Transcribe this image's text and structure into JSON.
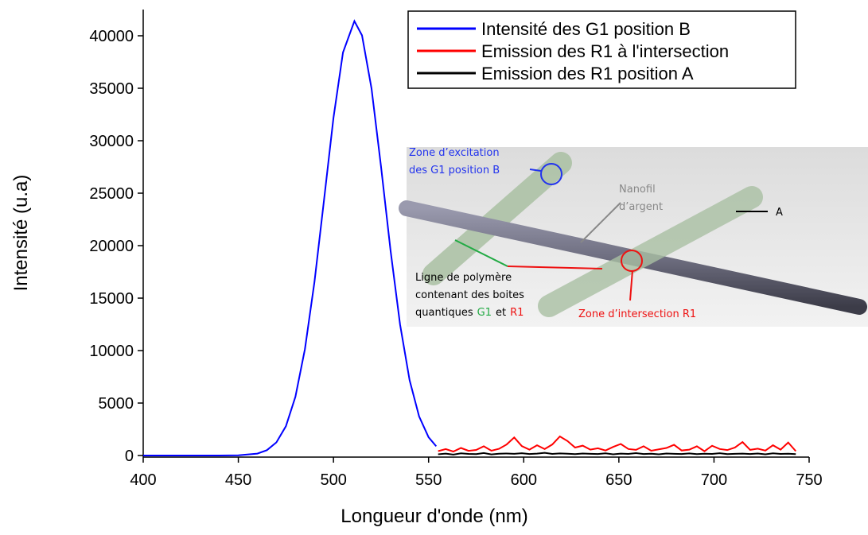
{
  "chart_data": {
    "type": "line",
    "x_label": "Longueur d'onde (nm)",
    "y_label": "Intensité (u.a)",
    "xlim": [
      400,
      750
    ],
    "ylim": [
      -150,
      42500
    ],
    "xticks": [
      400,
      450,
      500,
      550,
      600,
      650,
      700,
      750
    ],
    "yticks": [
      0,
      5000,
      10000,
      15000,
      20000,
      25000,
      30000,
      35000,
      40000
    ],
    "legend": "upper right",
    "series": [
      {
        "name": "Intensité des G1 position B",
        "color": "#0000ff",
        "x": [
          400,
          420,
          440,
          450,
          460,
          465,
          470,
          475,
          480,
          485,
          490,
          495,
          500,
          505,
          511,
          515,
          520,
          525,
          530,
          535,
          540,
          545,
          550,
          554
        ],
        "values": [
          0,
          0,
          1,
          18,
          185,
          508,
          1250,
          2790,
          5600,
          10140,
          16530,
          24300,
          32180,
          38410,
          41400,
          40040,
          34980,
          27530,
          19540,
          12490,
          7190,
          3730,
          1740,
          880
        ]
      },
      {
        "name": "Emission des R1 à l'intersection",
        "color": "#ff0000",
        "x": [
          555,
          559,
          563,
          567,
          571,
          575,
          579,
          583,
          587,
          591,
          595,
          599,
          603,
          607,
          611,
          615,
          619,
          623,
          627,
          631,
          635,
          639,
          643,
          647,
          651,
          655,
          659,
          663,
          667,
          671,
          675,
          679,
          683,
          687,
          691,
          695,
          699,
          703,
          707,
          711,
          715,
          719,
          723,
          727,
          731,
          735,
          739,
          743
        ],
        "values": [
          420,
          610,
          380,
          720,
          450,
          530,
          880,
          460,
          640,
          1050,
          1720,
          900,
          560,
          980,
          620,
          1050,
          1820,
          1380,
          760,
          940,
          560,
          690,
          480,
          820,
          1100,
          620,
          540,
          880,
          460,
          590,
          720,
          1020,
          480,
          560,
          880,
          410,
          930,
          620,
          520,
          760,
          1280,
          540,
          650,
          470,
          980,
          560,
          1240,
          420
        ]
      },
      {
        "name": "Emission des R1 position A",
        "color": "#000000",
        "x": [
          555,
          559,
          563,
          567,
          571,
          575,
          579,
          583,
          587,
          591,
          595,
          599,
          603,
          607,
          611,
          615,
          619,
          623,
          627,
          631,
          635,
          639,
          643,
          647,
          651,
          655,
          659,
          663,
          667,
          671,
          675,
          679,
          683,
          687,
          691,
          695,
          699,
          703,
          707,
          711,
          715,
          719,
          723,
          727,
          731,
          735,
          739,
          743
        ],
        "values": [
          120,
          180,
          90,
          210,
          150,
          130,
          240,
          110,
          170,
          190,
          160,
          220,
          140,
          180,
          260,
          150,
          200,
          170,
          130,
          190,
          160,
          140,
          210,
          120,
          180,
          150,
          230,
          140,
          170,
          120,
          190,
          160,
          140,
          200,
          130,
          170,
          150,
          220,
          130,
          160,
          180,
          140,
          190,
          120,
          210,
          150,
          170,
          130
        ]
      }
    ],
    "inset_labels": {
      "excitation": [
        "Zone d’excitation",
        "des G1 position B"
      ],
      "nanowire": [
        "Nanofil",
        "d’argent"
      ],
      "point_a": "A",
      "polymer": [
        "Ligne de polymère",
        "contenant des boites",
        "quantiques",
        "G1",
        "et",
        "R1"
      ],
      "intersection": "Zone d’intersection R1"
    }
  }
}
